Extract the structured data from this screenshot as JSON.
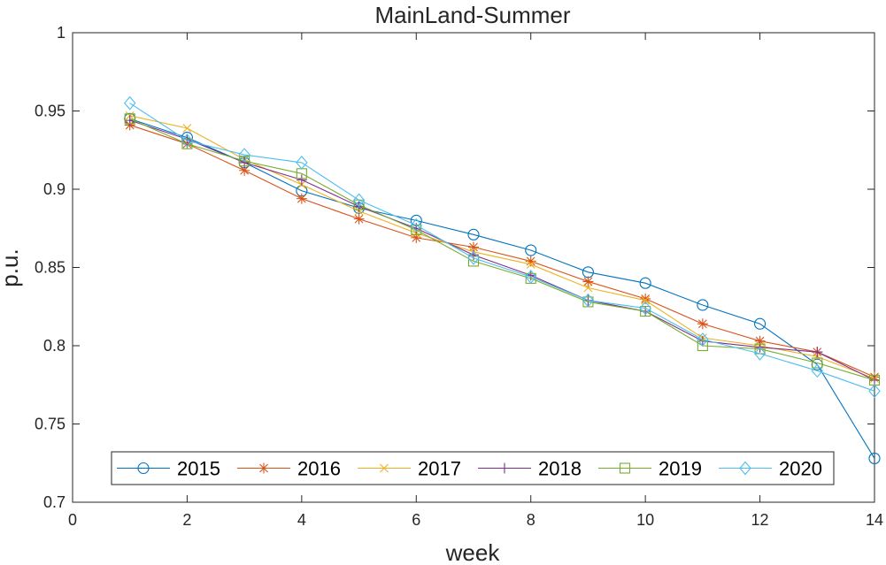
{
  "chart_data": {
    "type": "line",
    "title": "MainLand-Summer",
    "xlabel": "week",
    "ylabel": "p.u.",
    "xlim": [
      0,
      14
    ],
    "ylim": [
      0.7,
      1
    ],
    "xticks": [
      0,
      2,
      4,
      6,
      8,
      10,
      12,
      14
    ],
    "yticks": [
      0.7,
      0.75,
      0.8,
      0.85,
      0.9,
      0.95,
      1
    ],
    "ytick_labels": [
      "0.7",
      "0.75",
      "0.8",
      "0.85",
      "0.9",
      "0.95",
      "1"
    ],
    "grid": false,
    "legend_position": "bottom, horizontal",
    "x": [
      1,
      2,
      3,
      4,
      5,
      6,
      7,
      8,
      9,
      10,
      11,
      12,
      13,
      14
    ],
    "series": [
      {
        "name": "2015",
        "color": "#0072BD",
        "marker": "circle",
        "values": [
          0.945,
          0.933,
          0.917,
          0.899,
          0.888,
          0.88,
          0.871,
          0.861,
          0.847,
          0.84,
          0.826,
          0.814,
          0.788,
          0.728
        ]
      },
      {
        "name": "2016",
        "color": "#D95319",
        "marker": "asterisk",
        "values": [
          0.941,
          0.929,
          0.912,
          0.894,
          0.881,
          0.869,
          0.863,
          0.854,
          0.841,
          0.83,
          0.814,
          0.803,
          0.796,
          0.78
        ]
      },
      {
        "name": "2017",
        "color": "#EDB120",
        "marker": "x",
        "values": [
          0.947,
          0.939,
          0.919,
          0.903,
          0.886,
          0.872,
          0.86,
          0.852,
          0.837,
          0.829,
          0.805,
          0.8,
          0.793,
          0.779
        ]
      },
      {
        "name": "2018",
        "color": "#7E2F8E",
        "marker": "plus",
        "values": [
          0.944,
          0.932,
          0.917,
          0.906,
          0.889,
          0.875,
          0.858,
          0.845,
          0.829,
          0.822,
          0.803,
          0.799,
          0.796,
          0.778
        ]
      },
      {
        "name": "2019",
        "color": "#77AC30",
        "marker": "square",
        "values": [
          0.945,
          0.929,
          0.918,
          0.91,
          0.89,
          0.874,
          0.854,
          0.843,
          0.828,
          0.822,
          0.8,
          0.798,
          0.789,
          0.778
        ]
      },
      {
        "name": "2020",
        "color": "#4DBEEE",
        "marker": "diamond",
        "values": [
          0.955,
          0.931,
          0.922,
          0.917,
          0.893,
          0.877,
          0.856,
          0.844,
          0.829,
          0.824,
          0.804,
          0.795,
          0.784,
          0.771
        ]
      }
    ]
  }
}
